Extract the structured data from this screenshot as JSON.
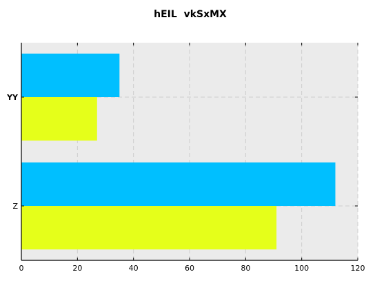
{
  "chart_data": {
    "type": "bar",
    "orientation": "horizontal",
    "title": "hEIL  vkSxMX",
    "xlabel": "",
    "ylabel": "",
    "categories": [
      "YY",
      "Z"
    ],
    "category_bold": [
      true,
      false
    ],
    "series": [
      {
        "values": [
          35,
          112
        ],
        "color": "#00bfff"
      },
      {
        "values": [
          27,
          91
        ],
        "color": "#e5ff1a"
      }
    ],
    "xlim": [
      0,
      120
    ],
    "xticks": [
      0,
      20,
      40,
      60,
      80,
      100,
      120
    ],
    "grid": true,
    "grid_style": "dashed",
    "background_color": "#ebebeb",
    "legend": false
  }
}
